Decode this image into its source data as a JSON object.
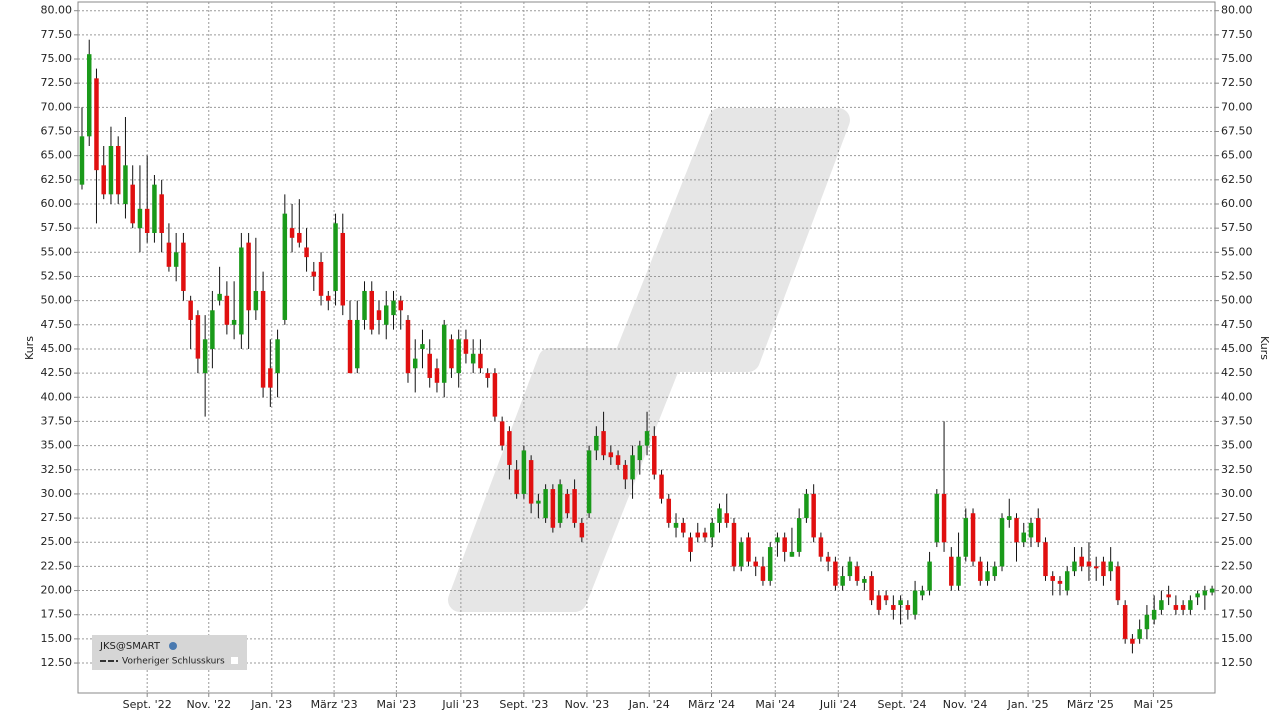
{
  "chart_data": {
    "type": "candlestick",
    "y_axis_label": "Kurs",
    "legend": {
      "symbol": "JKS@SMART",
      "line": "Vorheriger Schlusskurs"
    },
    "up_color": "#1a9a1a",
    "down_color": "#e01010",
    "grid": true,
    "xlim": [
      -0.55,
      156.4
    ],
    "xticks": [
      {
        "value": 9.0,
        "label": "Sept. '22"
      },
      {
        "value": 17.5,
        "label": "Nov. '22"
      },
      {
        "value": 26.2,
        "label": "Jan. '23"
      },
      {
        "value": 34.8,
        "label": "März '23"
      },
      {
        "value": 43.4,
        "label": "Mai '23"
      },
      {
        "value": 52.3,
        "label": "Juli '23"
      },
      {
        "value": 61.0,
        "label": "Sept. '23"
      },
      {
        "value": 69.7,
        "label": "Nov. '23"
      },
      {
        "value": 78.3,
        "label": "Jan. '24"
      },
      {
        "value": 86.9,
        "label": "März '24"
      },
      {
        "value": 95.7,
        "label": "Mai '24"
      },
      {
        "value": 104.4,
        "label": "Juli '24"
      },
      {
        "value": 113.2,
        "label": "Sept. '24"
      },
      {
        "value": 121.9,
        "label": "Nov. '24"
      },
      {
        "value": 130.6,
        "label": "Jan. '25"
      },
      {
        "value": 139.2,
        "label": "März '25"
      },
      {
        "value": 147.9,
        "label": "Mai '25"
      }
    ],
    "ylim": [
      9.4,
      80.9
    ],
    "yticks": [
      {
        "value": 12.5,
        "label": "12.50"
      },
      {
        "value": 15,
        "label": "15.00"
      },
      {
        "value": 17.5,
        "label": "17.50"
      },
      {
        "value": 20,
        "label": "20.00"
      },
      {
        "value": 22.5,
        "label": "22.50"
      },
      {
        "value": 25,
        "label": "25.00"
      },
      {
        "value": 27.5,
        "label": "27.50"
      },
      {
        "value": 30,
        "label": "30.00"
      },
      {
        "value": 32.5,
        "label": "32.50"
      },
      {
        "value": 35,
        "label": "35.00"
      },
      {
        "value": 37.5,
        "label": "37.50"
      },
      {
        "value": 40,
        "label": "40.00"
      },
      {
        "value": 42.5,
        "label": "42.50"
      },
      {
        "value": 45,
        "label": "45.00"
      },
      {
        "value": 47.5,
        "label": "47.50"
      },
      {
        "value": 50,
        "label": "50.00"
      },
      {
        "value": 52.5,
        "label": "52.50"
      },
      {
        "value": 55,
        "label": "55.00"
      },
      {
        "value": 57.5,
        "label": "57.50"
      },
      {
        "value": 60,
        "label": "60.00"
      },
      {
        "value": 62.5,
        "label": "62.50"
      },
      {
        "value": 65,
        "label": "65.00"
      },
      {
        "value": 67.5,
        "label": "67.50"
      },
      {
        "value": 70,
        "label": "70.00"
      },
      {
        "value": 72.5,
        "label": "72.50"
      },
      {
        "value": 75,
        "label": "75.00"
      },
      {
        "value": 77.5,
        "label": "77.50"
      },
      {
        "value": 80,
        "label": "80.00"
      }
    ],
    "ohlc": [
      [
        62,
        70,
        61.5,
        67
      ],
      [
        67,
        77,
        66,
        75.5
      ],
      [
        73,
        74,
        58,
        63.5
      ],
      [
        64,
        66,
        60.5,
        61
      ],
      [
        61,
        68,
        60,
        66
      ],
      [
        66,
        67,
        60,
        61
      ],
      [
        60,
        69,
        58.5,
        64
      ],
      [
        62,
        64,
        57.5,
        58
      ],
      [
        57.5,
        64,
        55,
        59.5
      ],
      [
        59.5,
        65,
        56,
        57
      ],
      [
        57,
        63,
        56,
        62
      ],
      [
        61,
        62.5,
        55,
        57
      ],
      [
        56,
        58,
        53,
        53.5
      ],
      [
        53.5,
        57,
        52,
        55
      ],
      [
        56,
        57,
        50,
        51
      ],
      [
        50,
        50.5,
        45,
        48
      ],
      [
        48.5,
        49,
        42.5,
        44
      ],
      [
        42.5,
        48.5,
        38,
        46
      ],
      [
        45,
        51,
        43,
        49
      ],
      [
        50,
        53.5,
        49.5,
        50.7
      ],
      [
        50.5,
        52,
        46.5,
        47.5
      ],
      [
        47.5,
        52,
        46,
        48
      ],
      [
        46.5,
        57,
        45,
        55.5
      ],
      [
        56,
        57,
        45,
        49
      ],
      [
        49,
        56.5,
        48,
        51
      ],
      [
        51,
        53,
        40,
        41
      ],
      [
        43,
        46,
        39,
        41
      ],
      [
        42.5,
        47,
        40,
        46
      ],
      [
        48,
        61,
        47.5,
        59
      ],
      [
        57.5,
        60,
        55,
        56.5
      ],
      [
        57,
        60.5,
        55.5,
        56
      ],
      [
        55.5,
        57.5,
        53,
        54.5
      ],
      [
        53,
        54,
        51,
        52.5
      ],
      [
        54,
        55,
        49.5,
        50.5
      ],
      [
        50.5,
        51,
        49,
        50
      ],
      [
        51,
        59,
        49.5,
        58
      ],
      [
        57,
        59,
        48.5,
        49.5
      ],
      [
        48,
        50,
        42.5,
        42.5
      ],
      [
        43,
        50,
        42.5,
        48
      ],
      [
        48,
        52,
        47,
        51
      ],
      [
        51,
        52,
        46.5,
        47
      ],
      [
        49,
        50,
        46.5,
        48
      ],
      [
        47.5,
        51,
        46,
        49.5
      ],
      [
        48.5,
        51,
        47,
        50
      ],
      [
        50,
        50.5,
        47,
        49
      ],
      [
        48,
        48.5,
        41.5,
        42.5
      ],
      [
        43,
        46,
        40.5,
        44
      ],
      [
        45,
        47,
        43,
        45.5
      ],
      [
        44.5,
        46,
        41,
        42
      ],
      [
        43,
        44,
        40.5,
        41.5
      ],
      [
        41.5,
        48,
        40,
        47.5
      ],
      [
        46,
        46.5,
        42,
        43
      ],
      [
        42.5,
        47,
        41,
        46
      ],
      [
        46,
        47,
        43.5,
        44.5
      ],
      [
        43.5,
        46,
        42.5,
        44.5
      ],
      [
        44.5,
        46,
        42.5,
        43
      ],
      [
        42.5,
        43,
        41,
        42
      ],
      [
        42.5,
        43,
        37.5,
        38
      ],
      [
        37.5,
        38,
        34.5,
        35
      ],
      [
        36.5,
        37,
        31.5,
        33
      ],
      [
        32.5,
        33.5,
        29.5,
        30
      ],
      [
        30,
        35,
        29.5,
        34.5
      ],
      [
        33.5,
        34,
        28,
        29
      ],
      [
        29,
        30,
        27.5,
        29.3
      ],
      [
        27.5,
        31,
        27,
        30.5
      ],
      [
        30.5,
        31,
        26,
        26.5
      ],
      [
        27,
        31.5,
        26.5,
        31
      ],
      [
        30,
        30.5,
        27.5,
        28
      ],
      [
        30.5,
        31.5,
        26.5,
        27
      ],
      [
        27,
        27.5,
        25,
        25.5
      ],
      [
        28,
        35,
        27.5,
        34.5
      ],
      [
        34.5,
        37,
        33.5,
        36
      ],
      [
        36.5,
        38.5,
        33.5,
        34
      ],
      [
        34.3,
        35,
        33,
        33.8
      ],
      [
        34,
        34.5,
        32.5,
        33
      ],
      [
        33,
        33.5,
        30.5,
        31.5
      ],
      [
        31.5,
        35,
        29.5,
        34
      ],
      [
        33.5,
        35.5,
        32,
        35
      ],
      [
        35,
        38.5,
        34,
        36.5
      ],
      [
        36,
        37,
        31.5,
        32
      ],
      [
        32,
        32.5,
        29,
        29.5
      ],
      [
        29.5,
        30,
        26.5,
        27
      ],
      [
        26.5,
        28,
        25.5,
        27
      ],
      [
        27,
        27.5,
        25.5,
        26
      ],
      [
        25.5,
        26,
        23,
        24
      ],
      [
        26,
        27,
        25,
        25.5
      ],
      [
        26,
        26.5,
        25,
        25.5
      ],
      [
        25.5,
        27.5,
        24.5,
        27
      ],
      [
        27,
        29,
        26,
        28.5
      ],
      [
        28,
        30,
        26.5,
        27
      ],
      [
        27,
        27.5,
        22,
        22.5
      ],
      [
        22.5,
        25.5,
        22,
        25
      ],
      [
        25.5,
        26,
        22.5,
        23
      ],
      [
        23,
        23.5,
        21.5,
        22.5
      ],
      [
        22.5,
        23.5,
        20.5,
        21
      ],
      [
        21,
        25,
        20.5,
        24.5
      ],
      [
        25,
        26,
        23.5,
        25.5
      ],
      [
        25.5,
        26,
        23,
        24
      ],
      [
        23.5,
        26.5,
        23.5,
        24
      ],
      [
        24,
        28.5,
        23.5,
        27.5
      ],
      [
        27.5,
        30.5,
        27,
        30
      ],
      [
        30,
        31,
        25,
        25.5
      ],
      [
        25.5,
        26,
        23,
        23.5
      ],
      [
        23.5,
        24,
        22,
        23
      ],
      [
        23,
        23.5,
        20,
        20.5
      ],
      [
        20.5,
        22.5,
        20,
        21.5
      ],
      [
        21.5,
        23.5,
        21,
        23
      ],
      [
        22.5,
        23,
        20.5,
        21
      ],
      [
        20.8,
        21.5,
        20,
        21.2
      ],
      [
        21.5,
        22,
        18.5,
        19
      ],
      [
        19.5,
        20,
        17.5,
        18
      ],
      [
        19.5,
        20,
        18.5,
        19
      ],
      [
        18.5,
        19.5,
        17,
        18
      ],
      [
        18.5,
        19.5,
        16.5,
        19
      ],
      [
        18.5,
        19,
        17,
        18
      ],
      [
        17.5,
        21,
        17,
        20
      ],
      [
        19.5,
        20.5,
        19,
        20
      ],
      [
        20,
        24,
        19.5,
        23
      ],
      [
        25,
        30.5,
        24.5,
        30
      ],
      [
        30,
        37.5,
        24,
        25
      ],
      [
        23.5,
        24.5,
        20,
        20.5
      ],
      [
        20.5,
        26,
        20,
        23.5
      ],
      [
        23.5,
        28.5,
        23,
        27.5
      ],
      [
        28,
        28.5,
        22.5,
        23
      ],
      [
        23,
        23.5,
        20.5,
        21
      ],
      [
        21,
        23,
        20.5,
        22
      ],
      [
        21.5,
        23,
        21,
        22.5
      ],
      [
        22.5,
        28,
        22,
        27.5
      ],
      [
        27.3,
        29.5,
        26.5,
        27.7
      ],
      [
        27.5,
        28,
        23,
        25
      ],
      [
        25,
        27,
        24.5,
        26
      ],
      [
        25.5,
        27.5,
        24.5,
        27
      ],
      [
        27.5,
        28.5,
        24.5,
        25
      ],
      [
        25,
        25.5,
        21,
        21.5
      ],
      [
        21.5,
        22,
        19.5,
        21
      ],
      [
        21,
        21.5,
        19.5,
        20.7
      ],
      [
        20,
        22.5,
        19.5,
        22
      ],
      [
        22,
        24.5,
        21.5,
        23
      ],
      [
        23.5,
        24.5,
        22,
        22.5
      ],
      [
        23,
        25,
        21,
        22.5
      ],
      [
        22.5,
        23.5,
        21,
        22.3
      ],
      [
        23,
        23.5,
        20.5,
        21.5
      ],
      [
        22,
        24.5,
        21,
        23
      ],
      [
        22.5,
        23,
        18.5,
        19
      ],
      [
        18.5,
        19,
        14.5,
        15
      ],
      [
        15,
        15.5,
        13.5,
        14.5
      ],
      [
        15,
        17,
        14.5,
        16
      ],
      [
        16,
        18.5,
        15,
        17.5
      ],
      [
        17,
        19.5,
        16.5,
        18
      ],
      [
        18,
        20,
        17.5,
        19
      ],
      [
        19.6,
        20.5,
        18.5,
        19.3
      ],
      [
        18.5,
        19.5,
        17.5,
        18
      ],
      [
        18.5,
        19,
        17.5,
        18
      ],
      [
        18,
        19.5,
        17.5,
        19
      ],
      [
        19.3,
        20,
        18.5,
        19.7
      ],
      [
        19.5,
        20.5,
        18,
        20
      ],
      [
        19.8,
        20.5,
        19.5,
        20.2
      ]
    ]
  }
}
